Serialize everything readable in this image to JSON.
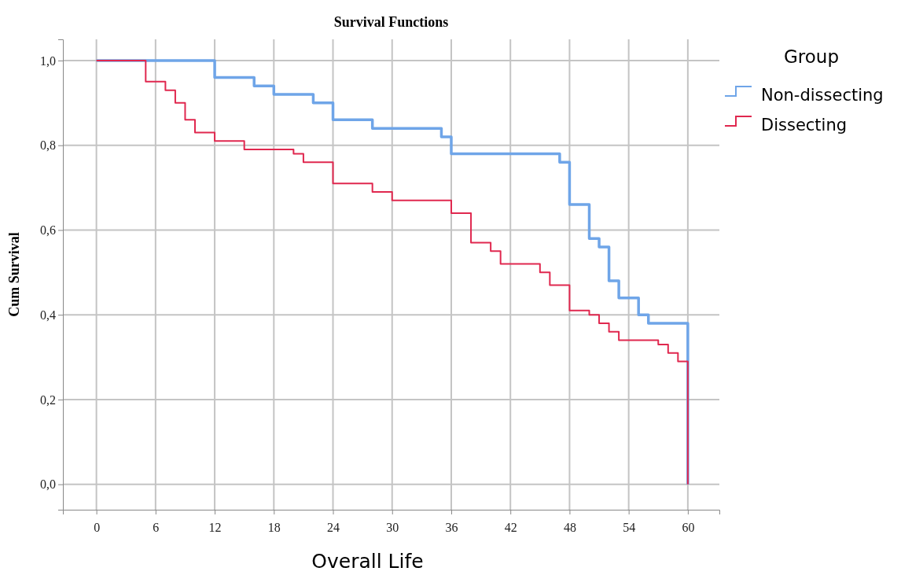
{
  "chart_data": {
    "type": "step",
    "title": "Survival Functions",
    "xlabel": "Overall Life",
    "ylabel": "Cum Survival",
    "legend_title": "Group",
    "legend": "top right",
    "grid": true,
    "xlim": [
      -3.4,
      63.2
    ],
    "ylim": [
      -0.06,
      1.05
    ],
    "xticks": [
      0,
      6,
      12,
      18,
      24,
      30,
      36,
      42,
      48,
      54,
      60
    ],
    "yticks": [
      {
        "value": 0,
        "label": "0,0"
      },
      {
        "value": 0.2,
        "label": "0,2"
      },
      {
        "value": 0.4,
        "label": "0,4"
      },
      {
        "value": 0.6,
        "label": "0,6"
      },
      {
        "value": 0.8,
        "label": "0,8"
      },
      {
        "value": 1,
        "label": "1,0"
      }
    ],
    "series": [
      {
        "name": "Non-dissecting",
        "color": "#6fa5e8",
        "x": [
          0,
          12,
          16,
          18,
          22,
          24,
          28,
          35,
          36,
          47,
          48,
          50,
          51,
          52,
          53,
          55,
          56,
          60,
          60
        ],
        "values": [
          1.0,
          0.96,
          0.94,
          0.92,
          0.9,
          0.86,
          0.84,
          0.82,
          0.78,
          0.76,
          0.66,
          0.58,
          0.56,
          0.48,
          0.44,
          0.4,
          0.38,
          0.38,
          0
        ]
      },
      {
        "name": "Dissecting",
        "color": "#e0284f",
        "x": [
          0,
          5,
          7,
          8,
          9,
          10,
          12,
          15,
          20,
          21,
          24,
          28,
          30,
          36,
          38,
          40,
          41,
          45,
          46,
          48,
          50,
          51,
          52,
          53,
          57,
          58,
          59,
          60,
          60
        ],
        "values": [
          1.0,
          0.95,
          0.93,
          0.9,
          0.86,
          0.83,
          0.81,
          0.79,
          0.78,
          0.76,
          0.71,
          0.69,
          0.67,
          0.64,
          0.57,
          0.55,
          0.52,
          0.5,
          0.47,
          0.41,
          0.4,
          0.38,
          0.36,
          0.34,
          0.33,
          0.31,
          0.29,
          0.29,
          0
        ]
      }
    ]
  }
}
